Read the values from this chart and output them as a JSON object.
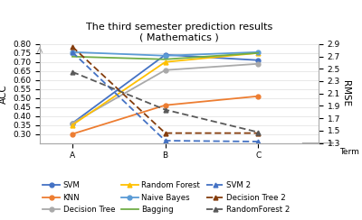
{
  "title": "The third semester prediction results\n( Mathematics )",
  "terms": [
    "A",
    "B",
    "C"
  ],
  "xlabel": "Term",
  "ylabel_left": "ACC",
  "ylabel_right": "RMSE",
  "ylim_left": [
    0.25,
    0.8
  ],
  "ylim_right": [
    1.3,
    2.9
  ],
  "yticks_left": [
    0.3,
    0.35,
    0.4,
    0.45,
    0.5,
    0.55,
    0.6,
    0.65,
    0.7,
    0.75,
    0.8
  ],
  "yticks_right": [
    1.3,
    1.5,
    1.7,
    1.9,
    2.1,
    2.3,
    2.5,
    2.7,
    2.9
  ],
  "solid_lines": {
    "SVM": {
      "color": "#4472C4",
      "marker": "o",
      "ms": 3.5,
      "lw": 1.3,
      "data": [
        0.36,
        0.74,
        0.71
      ]
    },
    "KNN": {
      "color": "#ED7D31",
      "marker": "o",
      "ms": 3.5,
      "lw": 1.3,
      "data": [
        0.3,
        0.46,
        0.51
      ]
    },
    "Decision Tree": {
      "color": "#A9A9A9",
      "marker": "o",
      "ms": 3.5,
      "lw": 1.3,
      "data": [
        0.36,
        0.655,
        0.69
      ]
    },
    "Random Forest": {
      "color": "#FFC000",
      "marker": "^",
      "ms": 3.5,
      "lw": 1.3,
      "data": [
        0.35,
        0.7,
        0.75
      ]
    },
    "Naive Bayes": {
      "color": "#5B9BD5",
      "marker": "o",
      "ms": 3.5,
      "lw": 1.3,
      "data": [
        0.755,
        0.735,
        0.755
      ]
    },
    "Bagging": {
      "color": "#70AD47",
      "marker": null,
      "ms": 3.5,
      "lw": 1.3,
      "data": [
        0.73,
        0.715,
        0.75
      ]
    }
  },
  "dashed_lines": {
    "SVM 2": {
      "color": "#4472C4",
      "marker": "^",
      "ms": 3.5,
      "lw": 1.3,
      "data": [
        0.755,
        0.263,
        0.258
      ]
    },
    "Decision Tree 2": {
      "color": "#843C0C",
      "marker": "^",
      "ms": 3.5,
      "lw": 1.3,
      "data": [
        0.785,
        0.305,
        0.305
      ]
    },
    "RandomForest 2": {
      "color": "#595959",
      "marker": "^",
      "ms": 3.5,
      "lw": 1.3,
      "data": [
        0.645,
        0.435,
        0.31
      ]
    }
  },
  "spine_color": "#AAAAAA",
  "grid_color": "#CCCCCC",
  "tick_fontsize": 6.5,
  "label_fontsize": 7.5,
  "title_fontsize": 8,
  "legend_fontsize": 6.2
}
